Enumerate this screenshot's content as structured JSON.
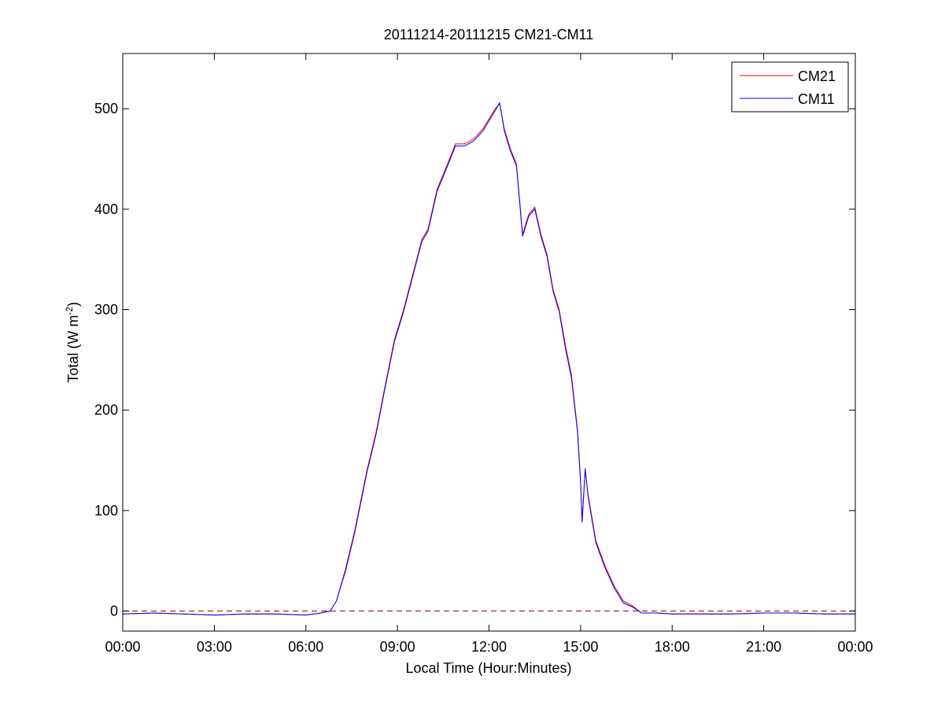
{
  "chart_data": {
    "type": "line",
    "title": "20111214-20111215 CM21-CM11",
    "xlabel": "Local Time (Hour:Minutes)",
    "ylabel": "Total (W m",
    "ylabel_sup": "-2",
    "ylabel_tail": ")",
    "xlim": [
      0,
      24
    ],
    "ylim": [
      -20,
      555
    ],
    "x_ticks": [
      0,
      3,
      6,
      9,
      12,
      15,
      18,
      21,
      24
    ],
    "x_tick_labels": [
      "00:00",
      "03:00",
      "06:00",
      "09:00",
      "12:00",
      "15:00",
      "18:00",
      "21:00",
      "00:00"
    ],
    "y_ticks": [
      0,
      100,
      200,
      300,
      400,
      500
    ],
    "y_tick_labels": [
      "0",
      "100",
      "200",
      "300",
      "400",
      "500"
    ],
    "grid": false,
    "legend_position": "top-right",
    "reference_line": {
      "y": 0,
      "style": "dashed",
      "color": "#b22222"
    },
    "series": [
      {
        "name": "CM21",
        "color": "#ff0000",
        "x": [
          0,
          1,
          2,
          3,
          4,
          5,
          6,
          6.5,
          6.8,
          7.0,
          7.3,
          7.6,
          8.0,
          8.3,
          8.6,
          8.9,
          9.2,
          9.5,
          9.8,
          10.0,
          10.3,
          10.6,
          10.9,
          11.2,
          11.5,
          11.8,
          12.0,
          12.2,
          12.35,
          12.5,
          12.7,
          12.9,
          13.1,
          13.3,
          13.5,
          13.7,
          13.9,
          14.1,
          14.3,
          14.5,
          14.7,
          14.9,
          15.0,
          15.05,
          15.15,
          15.25,
          15.5,
          15.8,
          16.1,
          16.4,
          16.7,
          17.0,
          17.5,
          18,
          19,
          20,
          21,
          22,
          23,
          24
        ],
        "y": [
          -3,
          -2,
          -3,
          -4,
          -3,
          -3,
          -4,
          -2,
          0,
          10,
          42,
          80,
          140,
          178,
          225,
          270,
          300,
          335,
          370,
          380,
          420,
          442,
          465,
          465,
          470,
          480,
          490,
          500,
          505,
          480,
          460,
          445,
          375,
          395,
          402,
          375,
          355,
          320,
          300,
          265,
          235,
          180,
          130,
          90,
          140,
          115,
          70,
          45,
          25,
          10,
          5,
          -2,
          -2,
          -3,
          -3,
          -3,
          -2,
          -2,
          -3,
          -3
        ]
      },
      {
        "name": "CM11",
        "color": "#0000ff",
        "x": [
          0,
          1,
          2,
          3,
          4,
          5,
          6,
          6.5,
          6.8,
          7.0,
          7.3,
          7.6,
          8.0,
          8.3,
          8.6,
          8.9,
          9.2,
          9.5,
          9.8,
          10.0,
          10.3,
          10.6,
          10.9,
          11.2,
          11.5,
          11.8,
          12.0,
          12.2,
          12.35,
          12.5,
          12.7,
          12.9,
          13.1,
          13.3,
          13.5,
          13.7,
          13.9,
          14.1,
          14.3,
          14.5,
          14.7,
          14.9,
          15.0,
          15.05,
          15.15,
          15.25,
          15.5,
          15.8,
          16.1,
          16.4,
          16.7,
          17.0,
          17.5,
          18,
          19,
          20,
          21,
          22,
          23,
          24
        ],
        "y": [
          -3,
          -2,
          -3,
          -4,
          -3,
          -3,
          -4,
          -2,
          0,
          10,
          40,
          78,
          138,
          176,
          223,
          268,
          298,
          333,
          368,
          378,
          418,
          440,
          463,
          463,
          468,
          478,
          488,
          498,
          506,
          478,
          458,
          443,
          373,
          393,
          400,
          373,
          353,
          318,
          298,
          262,
          232,
          178,
          128,
          88,
          142,
          113,
          68,
          43,
          23,
          8,
          4,
          -2,
          -2,
          -3,
          -3,
          -3,
          -2,
          -2,
          -3,
          -3
        ]
      }
    ]
  }
}
